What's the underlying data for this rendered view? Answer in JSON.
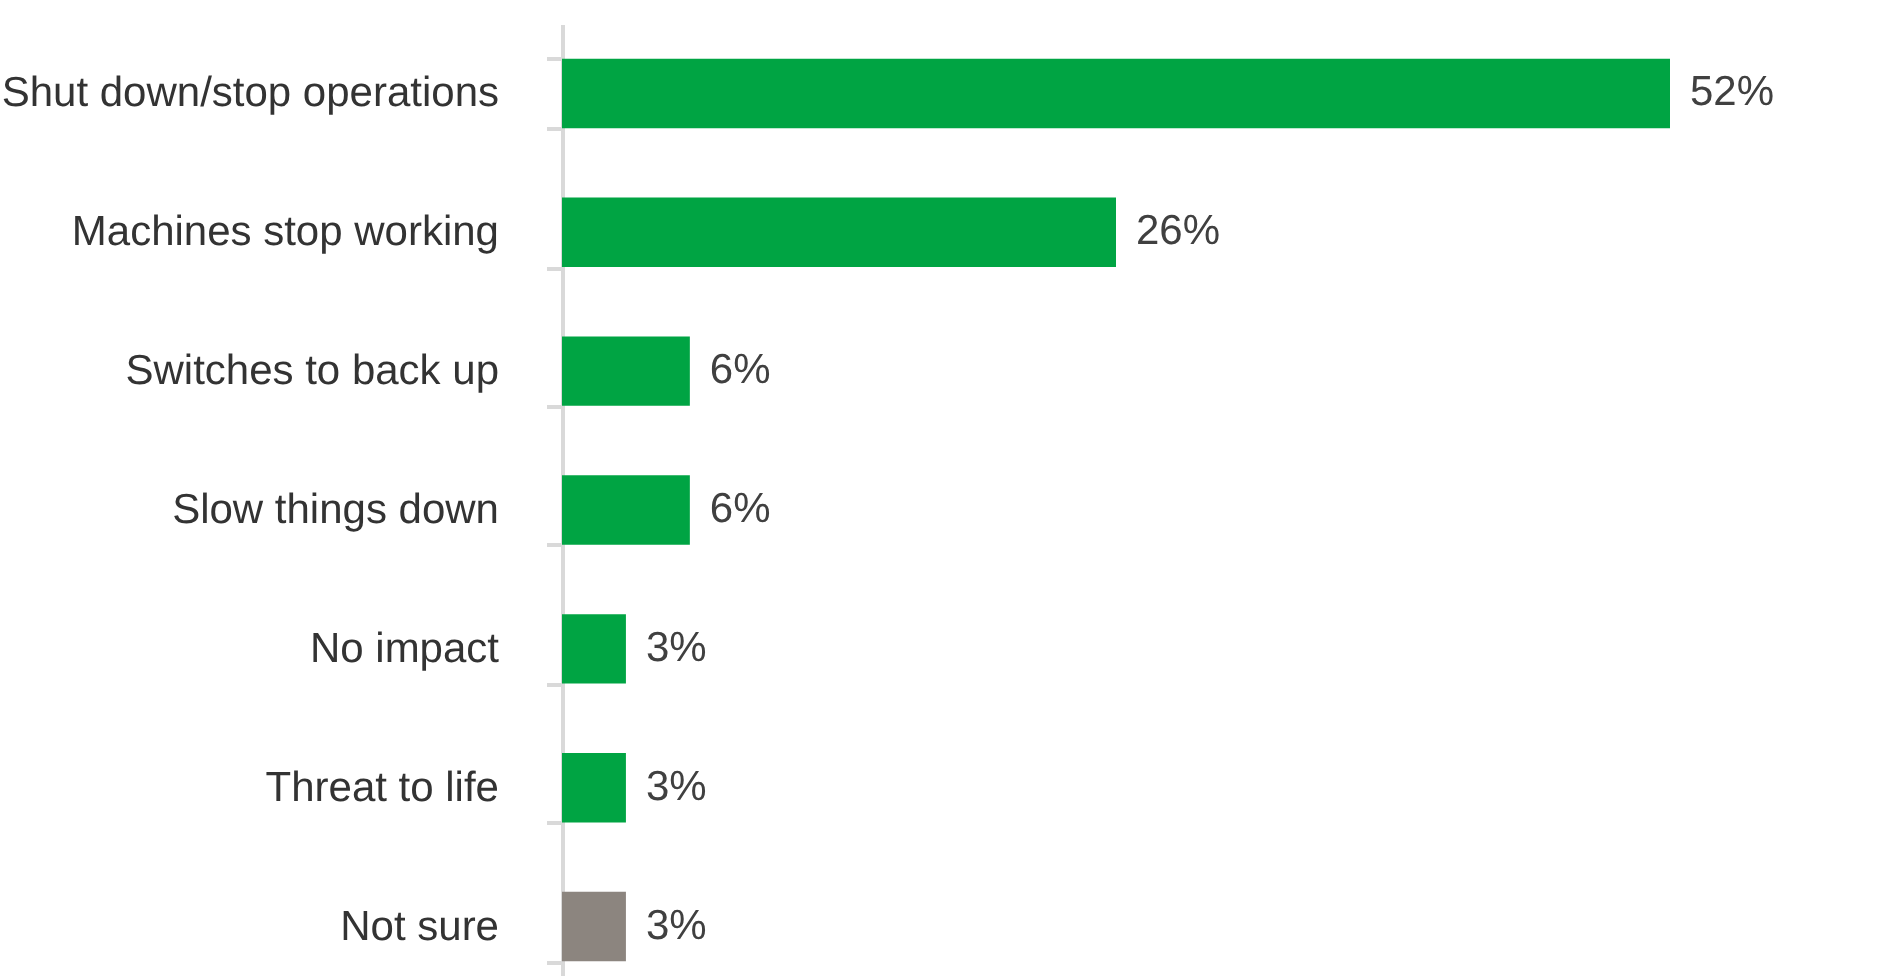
{
  "chart_data": {
    "type": "bar",
    "orientation": "horizontal",
    "categories": [
      "Shut down/stop operations",
      "Machines stop working",
      "Switches to back up",
      "Slow things down",
      "No impact",
      "Threat to life",
      "Not sure"
    ],
    "values": [
      52,
      26,
      6,
      6,
      3,
      3,
      3
    ],
    "colors": [
      "#00a443",
      "#00a443",
      "#00a443",
      "#00a443",
      "#00a443",
      "#00a443",
      "#8c857f"
    ],
    "value_labels": [
      "52%",
      "26%",
      "6%",
      "6%",
      "3%",
      "3%",
      "3%"
    ]
  }
}
